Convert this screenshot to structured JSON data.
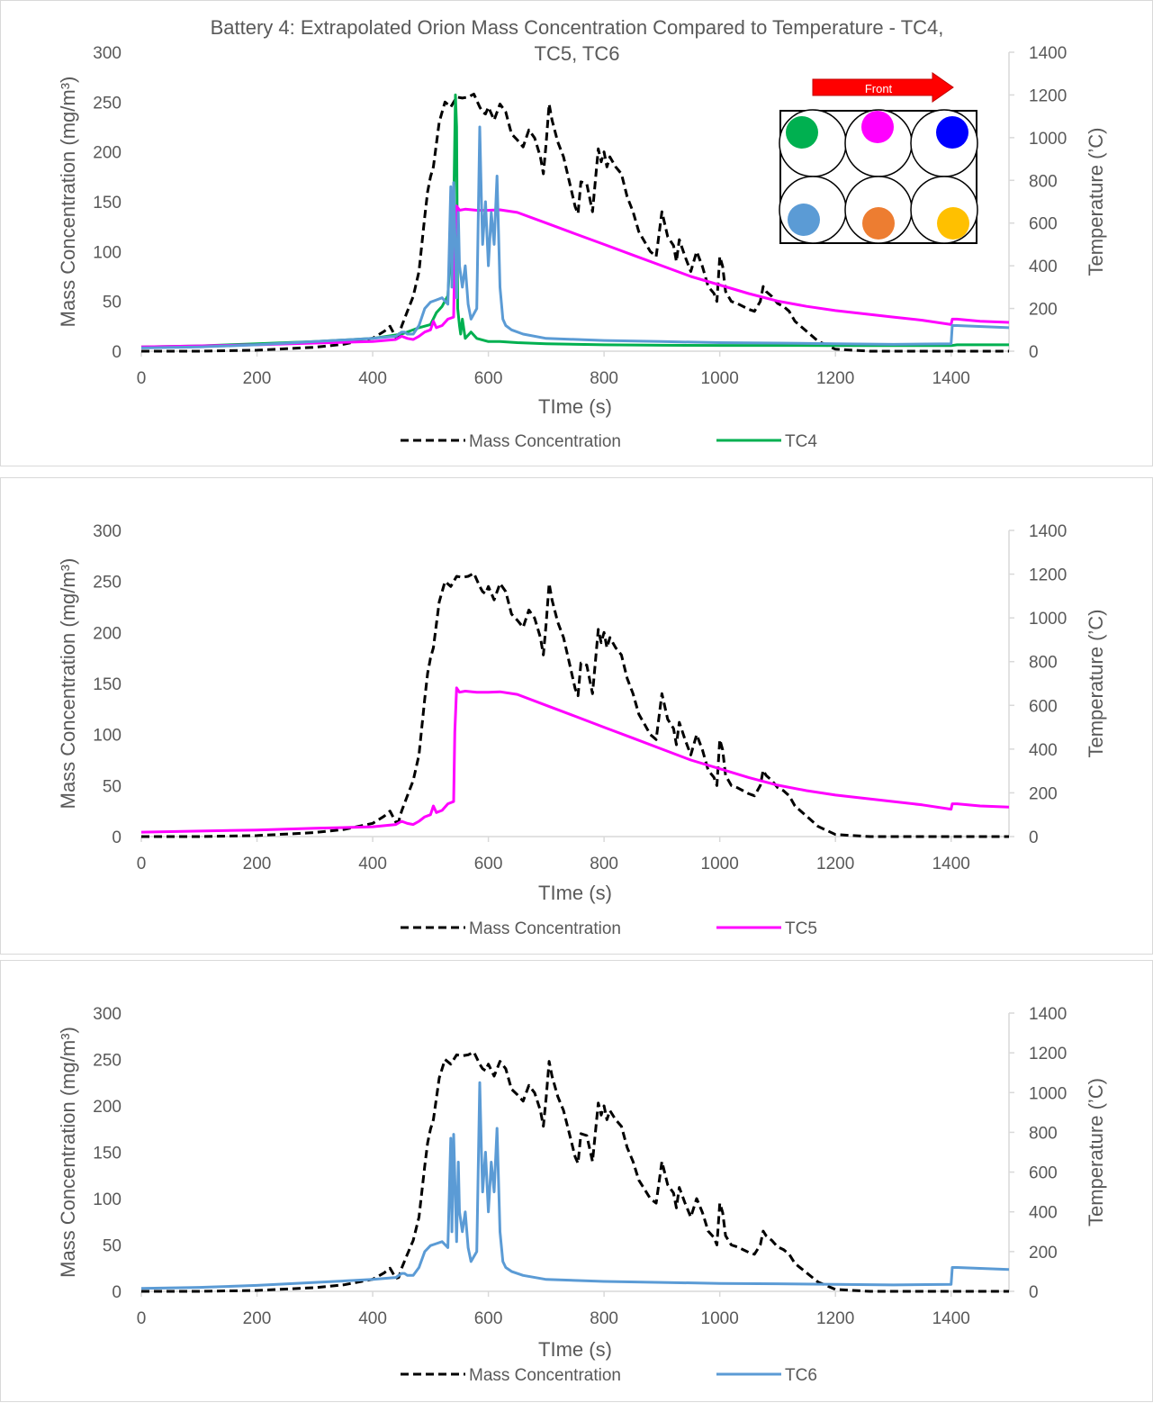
{
  "chart_data": [
    {
      "type": "line",
      "title_lines": [
        "Battery 4: Extrapolated Orion Mass Concentration Compared to Temperature - TC4,",
        "TC5, TC6"
      ],
      "xlabel": "TIme (s)",
      "ylabel": "Mass Concentration (mg/m³)",
      "y2label": "Temperature (’C)",
      "xlim": [
        0,
        1500
      ],
      "ylim": [
        0,
        300
      ],
      "y2lim": [
        0,
        1400
      ],
      "xticks": [
        0,
        200,
        400,
        600,
        800,
        1000,
        1200,
        1400
      ],
      "yticks": [
        0,
        50,
        100,
        150,
        200,
        250,
        300
      ],
      "y2ticks": [
        0,
        200,
        400,
        600,
        800,
        1000,
        1200,
        1400
      ],
      "legend_position": "bottom",
      "series": [
        {
          "name": "Mass Concentration",
          "axis": "left",
          "style": "dashed",
          "color": "#000000",
          "x": [
            0,
            100,
            200,
            300,
            350,
            400,
            420,
            430,
            440,
            445,
            450,
            460,
            470,
            480,
            490,
            495,
            500,
            505,
            515,
            525,
            535,
            545,
            555,
            565,
            575,
            585,
            590,
            595,
            600,
            610,
            620,
            630,
            640,
            650,
            660,
            670,
            680,
            690,
            695,
            700,
            705,
            710,
            720,
            730,
            740,
            750,
            755,
            760,
            770,
            780,
            790,
            795,
            800,
            805,
            810,
            820,
            830,
            840,
            850,
            860,
            870,
            880,
            890,
            900,
            910,
            920,
            925,
            930,
            940,
            950,
            960,
            970,
            980,
            990,
            995,
            1000,
            1005,
            1010,
            1020,
            1030,
            1040,
            1050,
            1060,
            1070,
            1075,
            1080,
            1090,
            1100,
            1110,
            1120,
            1130,
            1150,
            1170,
            1200,
            1230,
            1260,
            1300,
            1400,
            1500
          ],
          "y": [
            0,
            0,
            1,
            4,
            7,
            13,
            20,
            25,
            14,
            15,
            25,
            40,
            55,
            80,
            135,
            160,
            175,
            185,
            230,
            250,
            245,
            255,
            254,
            255,
            258,
            245,
            240,
            238,
            245,
            232,
            248,
            240,
            218,
            212,
            205,
            222,
            214,
            195,
            178,
            210,
            248,
            232,
            210,
            195,
            170,
            145,
            138,
            170,
            168,
            140,
            203,
            190,
            200,
            185,
            195,
            185,
            178,
            155,
            140,
            120,
            110,
            100,
            95,
            140,
            115,
            106,
            90,
            112,
            95,
            80,
            100,
            85,
            65,
            58,
            50,
            95,
            85,
            60,
            50,
            48,
            45,
            42,
            40,
            50,
            65,
            60,
            55,
            48,
            45,
            40,
            30,
            20,
            10,
            2,
            1,
            0,
            0,
            0,
            0
          ]
        },
        {
          "name": "TC4",
          "axis": "right",
          "style": "solid",
          "color": "#00b050",
          "x": [
            0,
            100,
            200,
            300,
            400,
            450,
            480,
            500,
            510,
            520,
            530,
            535,
            540,
            543,
            545,
            547,
            550,
            552,
            555,
            560,
            570,
            580,
            600,
            620,
            650,
            700,
            800,
            900,
            1000,
            1100,
            1200,
            1300,
            1400,
            1410,
            1500
          ],
          "y": [
            20,
            25,
            35,
            45,
            60,
            80,
            110,
            125,
            180,
            210,
            260,
            500,
            650,
            1200,
            1050,
            200,
            120,
            80,
            150,
            60,
            90,
            60,
            45,
            45,
            40,
            35,
            30,
            28,
            27,
            27,
            26,
            26,
            26,
            30,
            30
          ]
        },
        {
          "name": "TC5",
          "axis": "right",
          "style": "solid",
          "color": "#ff00ff",
          "x": [
            0,
            100,
            200,
            300,
            400,
            440,
            450,
            460,
            470,
            480,
            490,
            500,
            505,
            510,
            520,
            530,
            540,
            542,
            545,
            550,
            560,
            580,
            600,
            620,
            650,
            700,
            750,
            800,
            850,
            900,
            950,
            1000,
            1050,
            1100,
            1150,
            1200,
            1250,
            1300,
            1350,
            1400,
            1402,
            1410,
            1450,
            1500
          ],
          "y": [
            20,
            25,
            30,
            38,
            45,
            55,
            70,
            60,
            55,
            70,
            90,
            100,
            140,
            110,
            120,
            150,
            160,
            480,
            680,
            660,
            665,
            660,
            660,
            662,
            650,
            600,
            550,
            500,
            450,
            400,
            350,
            310,
            270,
            235,
            210,
            190,
            175,
            160,
            145,
            125,
            150,
            150,
            140,
            135
          ]
        },
        {
          "name": "TC6",
          "axis": "right",
          "style": "solid",
          "color": "#5b9bd5",
          "x": [
            0,
            100,
            200,
            300,
            400,
            440,
            450,
            455,
            460,
            470,
            480,
            490,
            500,
            510,
            520,
            530,
            535,
            537,
            540,
            545,
            548,
            550,
            555,
            560,
            565,
            570,
            580,
            585,
            588,
            590,
            595,
            600,
            605,
            610,
            615,
            620,
            625,
            630,
            640,
            660,
            700,
            800,
            900,
            1000,
            1100,
            1200,
            1300,
            1400,
            1402,
            1410,
            1500
          ],
          "y": [
            15,
            20,
            30,
            45,
            60,
            70,
            90,
            90,
            80,
            80,
            120,
            200,
            230,
            240,
            250,
            220,
            770,
            300,
            790,
            250,
            650,
            400,
            300,
            400,
            220,
            150,
            200,
            1050,
            700,
            500,
            700,
            400,
            650,
            500,
            820,
            300,
            150,
            120,
            100,
            80,
            60,
            50,
            45,
            40,
            38,
            35,
            32,
            35,
            120,
            120,
            110
          ]
        }
      ],
      "legend_entries": [
        "Mass Concentration",
        "TC4"
      ],
      "inset": {
        "arrow_label": "Front",
        "cell_colors": [
          "#00b050",
          "#ff00ff",
          "#0000ff",
          "#5b9bd5",
          "#ed7d31",
          "#ffc000"
        ]
      }
    },
    {
      "type": "line",
      "xlabel": "TIme (s)",
      "ylabel": "Mass Concentration (mg/m³)",
      "y2label": "Temperature (’C)",
      "xlim": [
        0,
        1500
      ],
      "ylim": [
        0,
        300
      ],
      "y2lim": [
        0,
        1400
      ],
      "xticks": [
        0,
        200,
        400,
        600,
        800,
        1000,
        1200,
        1400
      ],
      "yticks": [
        0,
        50,
        100,
        150,
        200,
        250,
        300
      ],
      "y2ticks": [
        0,
        200,
        400,
        600,
        800,
        1000,
        1200,
        1400
      ],
      "legend_position": "bottom",
      "legend_entries": [
        "Mass Concentration",
        "TC5"
      ],
      "series_refs": [
        "Mass Concentration",
        "TC5"
      ]
    },
    {
      "type": "line",
      "xlabel": "TIme (s)",
      "ylabel": "Mass Concentration (mg/m³)",
      "y2label": "Temperature (’C)",
      "xlim": [
        0,
        1500
      ],
      "ylim": [
        0,
        300
      ],
      "y2lim": [
        0,
        1400
      ],
      "xticks": [
        0,
        200,
        400,
        600,
        800,
        1000,
        1200,
        1400
      ],
      "yticks": [
        0,
        50,
        100,
        150,
        200,
        250,
        300
      ],
      "y2ticks": [
        0,
        200,
        400,
        600,
        800,
        1000,
        1200,
        1400
      ],
      "legend_position": "bottom",
      "legend_entries": [
        "Mass Concentration",
        "TC6"
      ],
      "series_refs": [
        "Mass Concentration",
        "TC6"
      ]
    }
  ]
}
